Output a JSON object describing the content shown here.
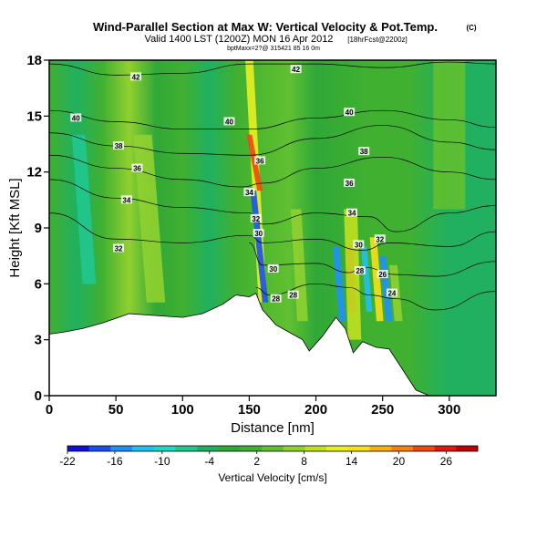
{
  "chart_data": {
    "type": "heatmap",
    "title": "Wind-Parallel Section at Max W: Vertical Velocity & Pot.Temp.",
    "title_mark": "(C)",
    "subtitle": "Valid 1400 LST (1200Z) MON 16 Apr 2012",
    "subtitle_tag": "[18hrFcst@2200z]",
    "subtitle2": "bptMaxx=2?@ 315421 85 16 0m",
    "xlabel": "Distance [nm]",
    "ylabel": "Height [Kft MSL]",
    "xlim": [
      0,
      335
    ],
    "ylim": [
      0,
      18
    ],
    "xticks": [
      "0",
      "50",
      "100",
      "150",
      "200",
      "250",
      "300"
    ],
    "yticks": [
      "0",
      "3",
      "6",
      "9",
      "12",
      "15",
      "18"
    ],
    "grid": false,
    "colorbar": {
      "label": "Vertical Velocity [cm/s]",
      "ticks": [
        "-22",
        "-16",
        "-10",
        "-4",
        "2",
        "8",
        "14",
        "20",
        "26"
      ],
      "min": -22,
      "max": 30,
      "colors": [
        "#1010d8",
        "#1850f0",
        "#2090f8",
        "#20c0f0",
        "#20d8c0",
        "#20c890",
        "#20b060",
        "#30a838",
        "#40b030",
        "#60c030",
        "#90d030",
        "#c0e020",
        "#e8f020",
        "#f8e018",
        "#f8b010",
        "#f88010",
        "#f04810",
        "#e01810",
        "#c00000"
      ]
    },
    "terrain": [
      {
        "x": 0,
        "z": 3.3
      },
      {
        "x": 10,
        "z": 3.4
      },
      {
        "x": 25,
        "z": 3.6
      },
      {
        "x": 40,
        "z": 3.9
      },
      {
        "x": 60,
        "z": 4.4
      },
      {
        "x": 80,
        "z": 4.3
      },
      {
        "x": 100,
        "z": 4.2
      },
      {
        "x": 115,
        "z": 4.4
      },
      {
        "x": 130,
        "z": 4.9
      },
      {
        "x": 140,
        "z": 5.4
      },
      {
        "x": 150,
        "z": 5.3
      },
      {
        "x": 155,
        "z": 5.5
      },
      {
        "x": 160,
        "z": 4.6
      },
      {
        "x": 170,
        "z": 3.8
      },
      {
        "x": 180,
        "z": 3.4
      },
      {
        "x": 190,
        "z": 3.0
      },
      {
        "x": 195,
        "z": 2.4
      },
      {
        "x": 205,
        "z": 3.2
      },
      {
        "x": 215,
        "z": 4.2
      },
      {
        "x": 222,
        "z": 3.6
      },
      {
        "x": 228,
        "z": 2.3
      },
      {
        "x": 235,
        "z": 2.9
      },
      {
        "x": 245,
        "z": 2.6
      },
      {
        "x": 255,
        "z": 2.5
      },
      {
        "x": 265,
        "z": 1.4
      },
      {
        "x": 275,
        "z": 0.3
      },
      {
        "x": 285,
        "z": 0.0
      },
      {
        "x": 335,
        "z": 0.0
      }
    ],
    "background_w": [
      {
        "x": 0,
        "w": 0
      },
      {
        "x": 20,
        "w": -4
      },
      {
        "x": 40,
        "w": 2
      },
      {
        "x": 60,
        "w": 6
      },
      {
        "x": 80,
        "w": -2
      },
      {
        "x": 100,
        "w": 2
      },
      {
        "x": 120,
        "w": -4
      },
      {
        "x": 140,
        "w": 0
      },
      {
        "x": 180,
        "w": 3
      },
      {
        "x": 200,
        "w": -2
      },
      {
        "x": 240,
        "w": 2
      },
      {
        "x": 270,
        "w": 0
      },
      {
        "x": 300,
        "w": -4
      },
      {
        "x": 335,
        "w": -3
      }
    ],
    "plumes": [
      {
        "x0": 160,
        "x1": 150,
        "width": 3.0,
        "w": 12,
        "z0": 5,
        "z1": 18
      },
      {
        "x0": 158,
        "x1": 150,
        "width": 2.0,
        "w": 22,
        "z0": 11,
        "z1": 14
      },
      {
        "x0": 162,
        "x1": 153,
        "width": 2.2,
        "w": -18,
        "z0": 5,
        "z1": 11
      },
      {
        "x0": 227,
        "x1": 225,
        "width": 3.0,
        "w": 26,
        "z0": 4.5,
        "z1": 8
      },
      {
        "x0": 229,
        "x1": 226,
        "width": 5.0,
        "w": 10,
        "z0": 3,
        "z1": 10
      },
      {
        "x0": 220,
        "x1": 215,
        "width": 2.5,
        "w": -14,
        "z0": 4,
        "z1": 8
      },
      {
        "x0": 240,
        "x1": 236,
        "width": 2.2,
        "w": -12,
        "z0": 4.5,
        "z1": 8
      },
      {
        "x0": 248,
        "x1": 243,
        "width": 2.6,
        "w": 14,
        "z0": 4,
        "z1": 8.5
      },
      {
        "x0": 255,
        "x1": 250,
        "width": 2.5,
        "w": -16,
        "z0": 4,
        "z1": 7.5
      },
      {
        "x0": 262,
        "x1": 258,
        "width": 3,
        "w": 6,
        "z0": 4,
        "z1": 7
      },
      {
        "x0": 30,
        "x1": 22,
        "width": 5,
        "w": -8,
        "z0": 6,
        "z1": 14
      },
      {
        "x0": 80,
        "x1": 70,
        "width": 7,
        "w": 6,
        "z0": 5,
        "z1": 14
      },
      {
        "x0": 190,
        "x1": 185,
        "width": 4,
        "w": 6,
        "z0": 4,
        "z1": 10
      },
      {
        "x0": 300,
        "x1": 300,
        "width": 12,
        "w": 5,
        "z0": 10,
        "z1": 18
      }
    ],
    "isentropes": [
      {
        "label": "42",
        "pts": [
          [
            0,
            17.8
          ],
          [
            50,
            17.2
          ],
          [
            100,
            17.3
          ],
          [
            150,
            17.8
          ],
          [
            200,
            17.8
          ],
          [
            250,
            17.6
          ],
          [
            300,
            17.9
          ],
          [
            335,
            17.8
          ]
        ]
      },
      {
        "label": "40",
        "pts": [
          [
            0,
            15.3
          ],
          [
            50,
            14.7
          ],
          [
            100,
            14.3
          ],
          [
            150,
            14.3
          ],
          [
            200,
            14.9
          ],
          [
            250,
            15.3
          ],
          [
            300,
            14.8
          ],
          [
            335,
            14.4
          ]
        ]
      },
      {
        "label": "38",
        "pts": [
          [
            0,
            14.1
          ],
          [
            50,
            13.4
          ],
          [
            100,
            13.0
          ],
          [
            150,
            12.9
          ],
          [
            200,
            13.8
          ],
          [
            250,
            14.5
          ],
          [
            300,
            13.6
          ],
          [
            335,
            13.2
          ]
        ]
      },
      {
        "label": "36",
        "pts": [
          [
            0,
            12.9
          ],
          [
            50,
            12.2
          ],
          [
            100,
            11.6
          ],
          [
            145,
            11.2
          ],
          [
            160,
            11.4
          ],
          [
            200,
            12.2
          ],
          [
            250,
            12.8
          ],
          [
            300,
            12.0
          ],
          [
            335,
            11.6
          ]
        ]
      },
      {
        "label": "34",
        "pts": [
          [
            0,
            11.6
          ],
          [
            50,
            10.6
          ],
          [
            100,
            10.1
          ],
          [
            150,
            9.8
          ],
          [
            160,
            9.2
          ],
          [
            200,
            9.8
          ],
          [
            240,
            9.6
          ],
          [
            260,
            8.8
          ],
          [
            300,
            9.8
          ],
          [
            335,
            10.2
          ]
        ]
      },
      {
        "label": "32",
        "pts": [
          [
            0,
            9.8
          ],
          [
            50,
            8.4
          ],
          [
            100,
            8.2
          ],
          [
            150,
            8.6
          ],
          [
            160,
            8.2
          ],
          [
            200,
            8.4
          ],
          [
            235,
            7.8
          ],
          [
            255,
            8.2
          ],
          [
            300,
            8.0
          ],
          [
            335,
            8.8
          ]
        ]
      },
      {
        "label": "30",
        "pts": [
          [
            150,
            8.2
          ],
          [
            160,
            7.0
          ],
          [
            200,
            7.1
          ],
          [
            225,
            6.6
          ],
          [
            235,
            6.9
          ],
          [
            260,
            6.5
          ],
          [
            290,
            6.4
          ],
          [
            335,
            7.2
          ]
        ]
      },
      {
        "label": "28",
        "pts": [
          [
            155,
            5.8
          ],
          [
            165,
            5.4
          ],
          [
            200,
            6.0
          ],
          [
            225,
            5.8
          ],
          [
            240,
            5.4
          ],
          [
            260,
            5.2
          ],
          [
            290,
            4.6
          ],
          [
            335,
            5.6
          ]
        ]
      }
    ],
    "contour_labels": [
      {
        "text": "42",
        "x": 65,
        "y": 17.1
      },
      {
        "text": "42",
        "x": 185,
        "y": 17.5
      },
      {
        "text": "40",
        "x": 20,
        "y": 14.9
      },
      {
        "text": "40",
        "x": 135,
        "y": 14.7
      },
      {
        "text": "40",
        "x": 225,
        "y": 15.2
      },
      {
        "text": "38",
        "x": 52,
        "y": 13.4
      },
      {
        "text": "38",
        "x": 236,
        "y": 13.1
      },
      {
        "text": "36",
        "x": 66,
        "y": 12.2
      },
      {
        "text": "36",
        "x": 158,
        "y": 12.6
      },
      {
        "text": "36",
        "x": 225,
        "y": 11.4
      },
      {
        "text": "34",
        "x": 58,
        "y": 10.5
      },
      {
        "text": "34",
        "x": 150,
        "y": 10.9
      },
      {
        "text": "34",
        "x": 227,
        "y": 9.8
      },
      {
        "text": "32",
        "x": 52,
        "y": 7.9
      },
      {
        "text": "32",
        "x": 155,
        "y": 9.5
      },
      {
        "text": "32",
        "x": 248,
        "y": 8.4
      },
      {
        "text": "30",
        "x": 157,
        "y": 8.7
      },
      {
        "text": "30",
        "x": 168,
        "y": 6.8
      },
      {
        "text": "30",
        "x": 232,
        "y": 8.1
      },
      {
        "text": "28",
        "x": 170,
        "y": 5.2
      },
      {
        "text": "28",
        "x": 183,
        "y": 5.4
      },
      {
        "text": "28",
        "x": 233,
        "y": 6.7
      },
      {
        "text": "26",
        "x": 250,
        "y": 6.5
      },
      {
        "text": "24",
        "x": 257,
        "y": 5.5
      }
    ]
  }
}
